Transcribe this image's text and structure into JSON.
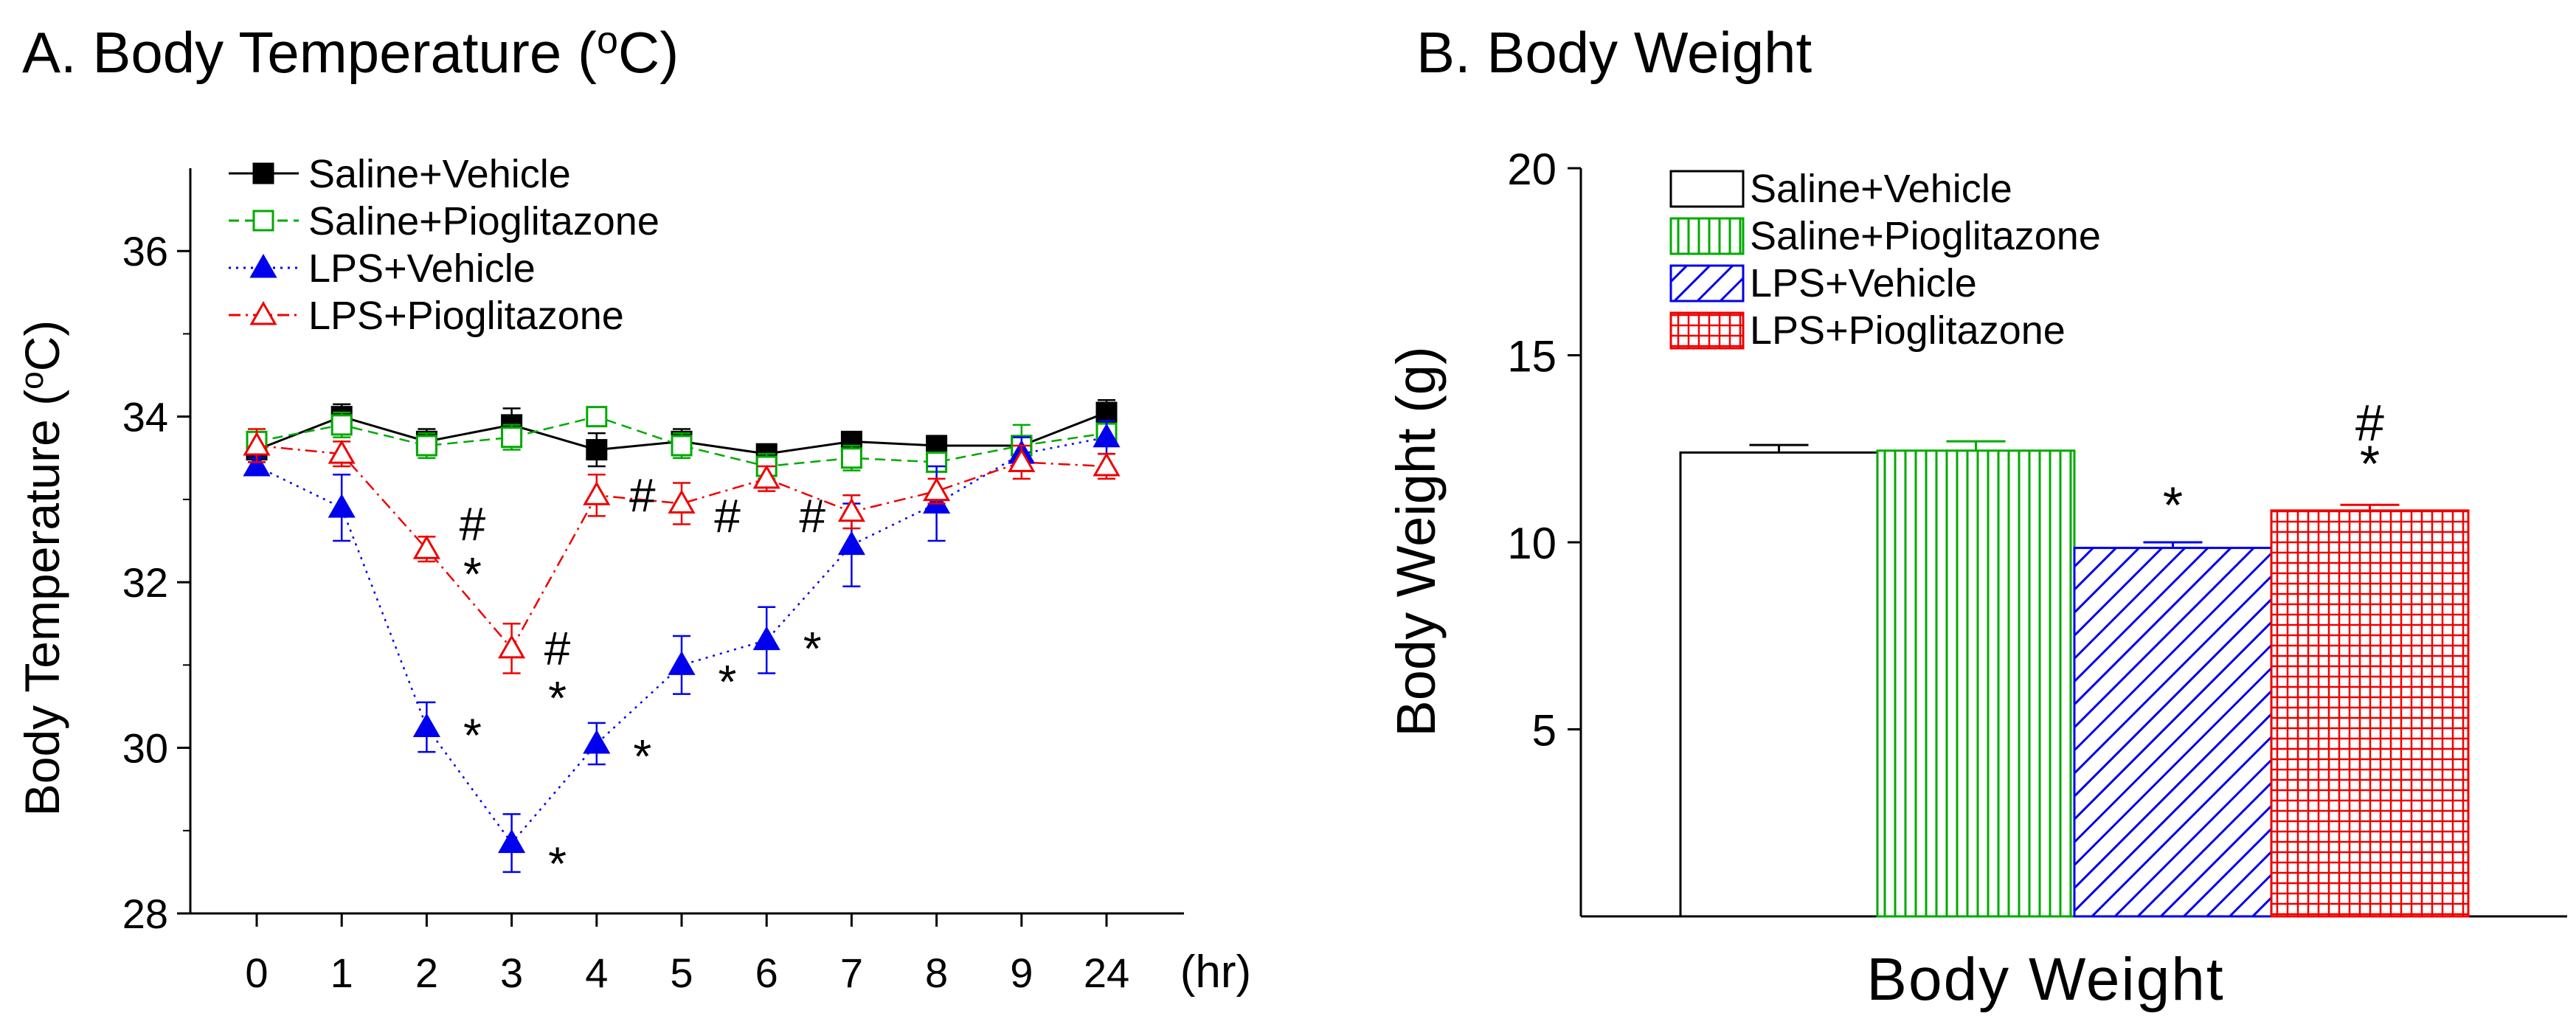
{
  "chart_data": [
    {
      "type": "line",
      "title_prefix": "A. Body Temperature (",
      "title_sup": "o",
      "title_suffix": "C)",
      "ylabel_prefix": "Body Temperature (",
      "ylabel_sup": "o",
      "ylabel_suffix": "C)",
      "xlabel": "(hr)",
      "categories": [
        "0",
        "1",
        "2",
        "3",
        "4",
        "5",
        "6",
        "7",
        "8",
        "9",
        "24"
      ],
      "ylim": [
        28,
        37
      ],
      "yticks": [
        28,
        30,
        32,
        34,
        36
      ],
      "series": [
        {
          "name": "Saline+Vehicle",
          "color": "#000000",
          "marker": "square-filled",
          "dash": "solid",
          "values": [
            33.6,
            34.0,
            33.7,
            33.9,
            33.6,
            33.7,
            33.55,
            33.7,
            33.65,
            33.65,
            34.05
          ],
          "errors": [
            0.15,
            0.15,
            0.15,
            0.2,
            0.2,
            0.15,
            0.1,
            0.1,
            0.1,
            0.1,
            0.15
          ]
        },
        {
          "name": "Saline+Pioglitazone",
          "color": "#00aa00",
          "marker": "square-open",
          "dash": "dashed",
          "values": [
            33.7,
            33.9,
            33.65,
            33.75,
            34.0,
            33.65,
            33.4,
            33.5,
            33.45,
            33.65,
            33.8
          ],
          "errors": [
            0.1,
            0.15,
            0.15,
            0.15,
            0.1,
            0.15,
            0.15,
            0.15,
            0.1,
            0.25,
            0.1
          ]
        },
        {
          "name": "LPS+Vehicle",
          "color": "#0000ee",
          "marker": "triangle-filled",
          "dash": "dotted",
          "values": [
            33.4,
            32.9,
            30.25,
            28.85,
            30.05,
            31.0,
            31.3,
            32.45,
            32.95,
            33.55,
            33.75
          ],
          "errors": [
            0.1,
            0.4,
            0.3,
            0.35,
            0.25,
            0.35,
            0.4,
            0.5,
            0.45,
            0.2,
            0.2
          ]
        },
        {
          "name": "LPS+Pioglitazone",
          "color": "#ee0000",
          "marker": "triangle-open",
          "dash": "dashdot",
          "values": [
            33.65,
            33.55,
            32.4,
            31.2,
            33.05,
            32.95,
            33.25,
            32.85,
            33.1,
            33.45,
            33.4
          ],
          "errors": [
            0.2,
            0.15,
            0.15,
            0.3,
            0.25,
            0.25,
            0.15,
            0.2,
            0.15,
            0.2,
            0.15
          ]
        }
      ],
      "annotations": [
        {
          "text": "#",
          "category": "2",
          "y": 32.7
        },
        {
          "text": "*",
          "category": "2",
          "y": 32.1
        },
        {
          "text": "#",
          "category": "3",
          "y": 31.2
        },
        {
          "text": "*",
          "category": "3",
          "y": 30.6
        },
        {
          "text": "*",
          "category": "2",
          "y": 30.15
        },
        {
          "text": "*",
          "category": "3",
          "y": 28.6
        },
        {
          "text": "*",
          "category": "4",
          "y": 29.9
        },
        {
          "text": "#",
          "category": "4",
          "y": 33.05
        },
        {
          "text": "*",
          "category": "5",
          "y": 30.8
        },
        {
          "text": "#",
          "category": "5",
          "y": 32.8
        },
        {
          "text": "*",
          "category": "6",
          "y": 31.2
        },
        {
          "text": "#",
          "category": "6",
          "y": 32.8
        }
      ]
    },
    {
      "type": "bar",
      "title": "B. Body Weight",
      "ylabel": "Body Weight (g)",
      "xlabel": "Body Weight",
      "ylim": [
        0,
        20
      ],
      "yticks": [
        5,
        10,
        15,
        20
      ],
      "series": [
        {
          "name": "Saline+Vehicle",
          "value": 12.4,
          "error": 0.2,
          "color": "#000000",
          "pattern": "none"
        },
        {
          "name": "Saline+Pioglitazone",
          "value": 12.45,
          "error": 0.25,
          "color": "#00aa00",
          "pattern": "vertical"
        },
        {
          "name": "LPS+Vehicle",
          "value": 9.85,
          "error": 0.15,
          "color": "#0000ee",
          "pattern": "diagonal"
        },
        {
          "name": "LPS+Pioglitazone",
          "value": 10.85,
          "error": 0.15,
          "color": "#ee0000",
          "pattern": "grid"
        }
      ],
      "annotations": [
        {
          "text": "*",
          "series": "LPS+Vehicle",
          "y": 11.0
        },
        {
          "text": "#",
          "series": "LPS+Pioglitazone",
          "y": 13.2
        },
        {
          "text": "*",
          "series": "LPS+Pioglitazone",
          "y": 12.1
        }
      ]
    }
  ]
}
